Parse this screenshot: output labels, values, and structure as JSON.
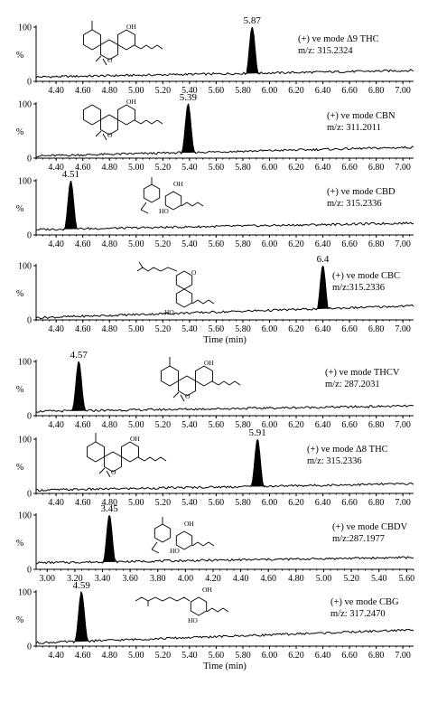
{
  "figure": {
    "x_axis_title": "Time (min)",
    "y_label": "%",
    "colors": {
      "ink": "#000000",
      "background": "#ffffff"
    }
  },
  "chart_data": [
    {
      "type": "line",
      "compound": "Δ9 THC",
      "info_line1": "(+) ve mode Δ9 THC",
      "info_line2": "m/z: 315.2324",
      "peak_time": 5.87,
      "peak_label": "5.87",
      "xlim": [
        4.25,
        7.08
      ],
      "ylim": [
        0,
        100
      ],
      "x_ticks": [
        "4.40",
        "4.60",
        "4.80",
        "5.00",
        "5.20",
        "5.40",
        "5.60",
        "5.80",
        "6.00",
        "6.20",
        "6.40",
        "6.60",
        "6.80",
        "7.00"
      ],
      "y_ticks": [
        "0",
        "100"
      ],
      "baseline_start": 8,
      "baseline_end": 20,
      "show_axis_title": false,
      "molecule": "thc",
      "mol_labels": [
        "OH",
        "O"
      ]
    },
    {
      "type": "line",
      "compound": "CBN",
      "info_line1": "(+) ve mode CBN",
      "info_line2": "m/z: 311.2011",
      "peak_time": 5.39,
      "peak_label": "5.39",
      "xlim": [
        4.25,
        7.08
      ],
      "ylim": [
        0,
        100
      ],
      "x_ticks": [
        "4.40",
        "4.60",
        "4.80",
        "5.00",
        "5.20",
        "5.40",
        "5.60",
        "5.80",
        "6.00",
        "6.20",
        "6.40",
        "6.60",
        "6.80",
        "7.00"
      ],
      "y_ticks": [
        "0",
        "100"
      ],
      "baseline_start": 4,
      "baseline_end": 20,
      "show_axis_title": false,
      "molecule": "cbn",
      "mol_labels": [
        "OH",
        "O"
      ]
    },
    {
      "type": "line",
      "compound": "CBD",
      "info_line1": "(+) ve mode CBD",
      "info_line2": "m/z: 315.2336",
      "peak_time": 4.51,
      "peak_label": "4.51",
      "xlim": [
        4.25,
        7.08
      ],
      "ylim": [
        0,
        100
      ],
      "x_ticks": [
        "4.40",
        "4.60",
        "4.80",
        "5.00",
        "5.20",
        "5.40",
        "5.60",
        "5.80",
        "6.00",
        "6.20",
        "6.40",
        "6.60",
        "6.80",
        "7.00"
      ],
      "y_ticks": [
        "0",
        "100"
      ],
      "baseline_start": 10,
      "baseline_end": 22,
      "show_axis_title": false,
      "molecule": "cbd",
      "mol_labels": [
        "OH",
        "HO"
      ]
    },
    {
      "type": "line",
      "compound": "CBC",
      "info_line1": "(+) ve mode CBC",
      "info_line2": "m/z:315.2336",
      "peak_time": 6.4,
      "peak_label": "6.4",
      "xlim": [
        4.25,
        7.08
      ],
      "ylim": [
        0,
        100
      ],
      "x_ticks": [
        "4.40",
        "4.60",
        "4.80",
        "5.00",
        "5.20",
        "5.40",
        "5.60",
        "5.80",
        "6.00",
        "6.20",
        "6.40",
        "6.60",
        "6.80",
        "7.00"
      ],
      "y_ticks": [
        "0",
        "100"
      ],
      "baseline_start": 4,
      "baseline_end": 26,
      "show_axis_title": true,
      "molecule": "cbc",
      "mol_labels": [
        "O",
        "HO"
      ]
    },
    {
      "type": "line",
      "compound": "THCV",
      "info_line1": "(+) ve mode THCV",
      "info_line2": "m/z: 287.2031",
      "peak_time": 4.57,
      "peak_label": "4.57",
      "xlim": [
        4.25,
        7.08
      ],
      "ylim": [
        0,
        100
      ],
      "x_ticks": [
        "4.40",
        "4.60",
        "4.80",
        "5.00",
        "5.20",
        "5.40",
        "5.60",
        "5.80",
        "6.00",
        "6.20",
        "6.40",
        "6.60",
        "6.80",
        "7.00"
      ],
      "y_ticks": [
        "0",
        "100"
      ],
      "baseline_start": 8,
      "baseline_end": 18,
      "show_axis_title": false,
      "molecule": "thc",
      "mol_labels": [
        "OH",
        "O"
      ]
    },
    {
      "type": "line",
      "compound": "Δ8 THC",
      "info_line1": "(+) ve mode Δ8 THC",
      "info_line2": "m/z: 315.2336",
      "peak_time": 5.91,
      "peak_label": "5.91",
      "xlim": [
        4.25,
        7.08
      ],
      "ylim": [
        0,
        100
      ],
      "x_ticks": [
        "4.40",
        "4.60",
        "4.80",
        "5.00",
        "5.20",
        "5.40",
        "5.60",
        "5.80",
        "6.00",
        "6.20",
        "6.40",
        "6.60",
        "6.80",
        "7.00"
      ],
      "y_ticks": [
        "0",
        "100"
      ],
      "baseline_start": 6,
      "baseline_end": 18,
      "show_axis_title": false,
      "molecule": "thc",
      "mol_labels": [
        "OH",
        "O"
      ]
    },
    {
      "type": "line",
      "compound": "CBDV",
      "info_line1": "(+) ve mode CBDV",
      "info_line2": "m/z:287.1977",
      "peak_time": 3.45,
      "peak_label": "3.45",
      "xlim": [
        2.92,
        5.65
      ],
      "ylim": [
        0,
        100
      ],
      "x_ticks": [
        "3.00",
        "3.20",
        "3.40",
        "3.60",
        "3.80",
        "4.00",
        "4.20",
        "4.40",
        "4.60",
        "4.80",
        "5.00",
        "5.20",
        "5.40",
        "5.60"
      ],
      "y_ticks": [
        "0",
        "100"
      ],
      "baseline_start": 12,
      "baseline_end": 22,
      "show_axis_title": false,
      "molecule": "cbd",
      "mol_labels": [
        "OH",
        "HO"
      ]
    },
    {
      "type": "line",
      "compound": "CBG",
      "info_line1": "(+) ve mode CBG",
      "info_line2": "m/z: 317.2470",
      "peak_time": 4.59,
      "peak_label": "4.59",
      "xlim": [
        4.25,
        7.08
      ],
      "ylim": [
        0,
        100
      ],
      "x_ticks": [
        "4.40",
        "4.60",
        "4.80",
        "5.00",
        "5.20",
        "5.40",
        "5.60",
        "5.80",
        "6.00",
        "6.20",
        "6.40",
        "6.60",
        "6.80",
        "7.00"
      ],
      "y_ticks": [
        "0",
        "100"
      ],
      "baseline_start": 6,
      "baseline_end": 30,
      "show_axis_title": true,
      "molecule": "cbg",
      "mol_labels": [
        "OH",
        "HO"
      ]
    }
  ]
}
